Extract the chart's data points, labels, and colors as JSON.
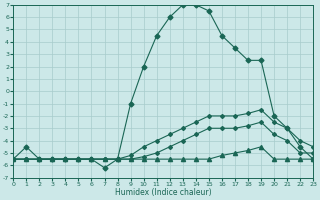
{
  "xlabel": "Humidex (Indice chaleur)",
  "xlim": [
    0,
    23
  ],
  "ylim": [
    -7,
    7
  ],
  "xticks": [
    0,
    1,
    2,
    3,
    4,
    5,
    6,
    7,
    8,
    9,
    10,
    11,
    12,
    13,
    14,
    15,
    16,
    17,
    18,
    19,
    20,
    21,
    22,
    23
  ],
  "yticks": [
    -7,
    -6,
    -5,
    -4,
    -3,
    -2,
    -1,
    0,
    1,
    2,
    3,
    4,
    5,
    6,
    7
  ],
  "bg_color": "#cce8e8",
  "grid_color": "#a8cccc",
  "line_color": "#1a6655",
  "lines": [
    {
      "x": [
        0,
        1,
        2,
        3,
        4,
        5,
        6,
        7,
        8,
        9,
        10,
        11,
        12,
        13,
        14,
        15,
        16,
        17,
        18,
        19,
        20,
        21,
        22,
        23
      ],
      "y": [
        -5.5,
        -4.5,
        -5.5,
        -5.5,
        -5.5,
        -5.5,
        -5.5,
        -6.2,
        -5.5,
        -1.0,
        2.0,
        4.5,
        6.0,
        7.0,
        7.0,
        6.5,
        4.5,
        3.5,
        2.5,
        2.5,
        -2.0,
        -3.0,
        -4.5,
        -5.5
      ],
      "marker": "D",
      "ms": 2.5
    },
    {
      "x": [
        0,
        1,
        2,
        3,
        4,
        5,
        6,
        7,
        8,
        9,
        10,
        11,
        12,
        13,
        14,
        15,
        16,
        17,
        18,
        19,
        20,
        21,
        22,
        23
      ],
      "y": [
        -5.5,
        -5.5,
        -5.5,
        -5.5,
        -5.5,
        -5.5,
        -5.5,
        -5.5,
        -5.5,
        -5.2,
        -4.5,
        -4.0,
        -3.5,
        -3.0,
        -2.5,
        -2.0,
        -2.0,
        -2.0,
        -1.8,
        -1.5,
        -2.5,
        -3.0,
        -4.0,
        -4.5
      ],
      "marker": "D",
      "ms": 2.0
    },
    {
      "x": [
        0,
        1,
        2,
        3,
        4,
        5,
        6,
        7,
        8,
        9,
        10,
        11,
        12,
        13,
        14,
        15,
        16,
        17,
        18,
        19,
        20,
        21,
        22,
        23
      ],
      "y": [
        -5.5,
        -5.5,
        -5.5,
        -5.5,
        -5.5,
        -5.5,
        -5.5,
        -5.5,
        -5.5,
        -5.5,
        -5.3,
        -5.0,
        -4.5,
        -4.0,
        -3.5,
        -3.0,
        -3.0,
        -3.0,
        -2.8,
        -2.5,
        -3.5,
        -4.0,
        -5.0,
        -5.0
      ],
      "marker": "D",
      "ms": 2.0
    },
    {
      "x": [
        0,
        1,
        2,
        3,
        4,
        5,
        6,
        7,
        8,
        9,
        10,
        11,
        12,
        13,
        14,
        15,
        16,
        17,
        18,
        19,
        20,
        21,
        22,
        23
      ],
      "y": [
        -5.5,
        -5.5,
        -5.5,
        -5.5,
        -5.5,
        -5.5,
        -5.5,
        -5.5,
        -5.5,
        -5.5,
        -5.5,
        -5.5,
        -5.5,
        -5.5,
        -5.5,
        -5.5,
        -5.2,
        -5.0,
        -4.8,
        -4.5,
        -5.5,
        -5.5,
        -5.5,
        -5.5
      ],
      "marker": "^",
      "ms": 3.0
    }
  ]
}
